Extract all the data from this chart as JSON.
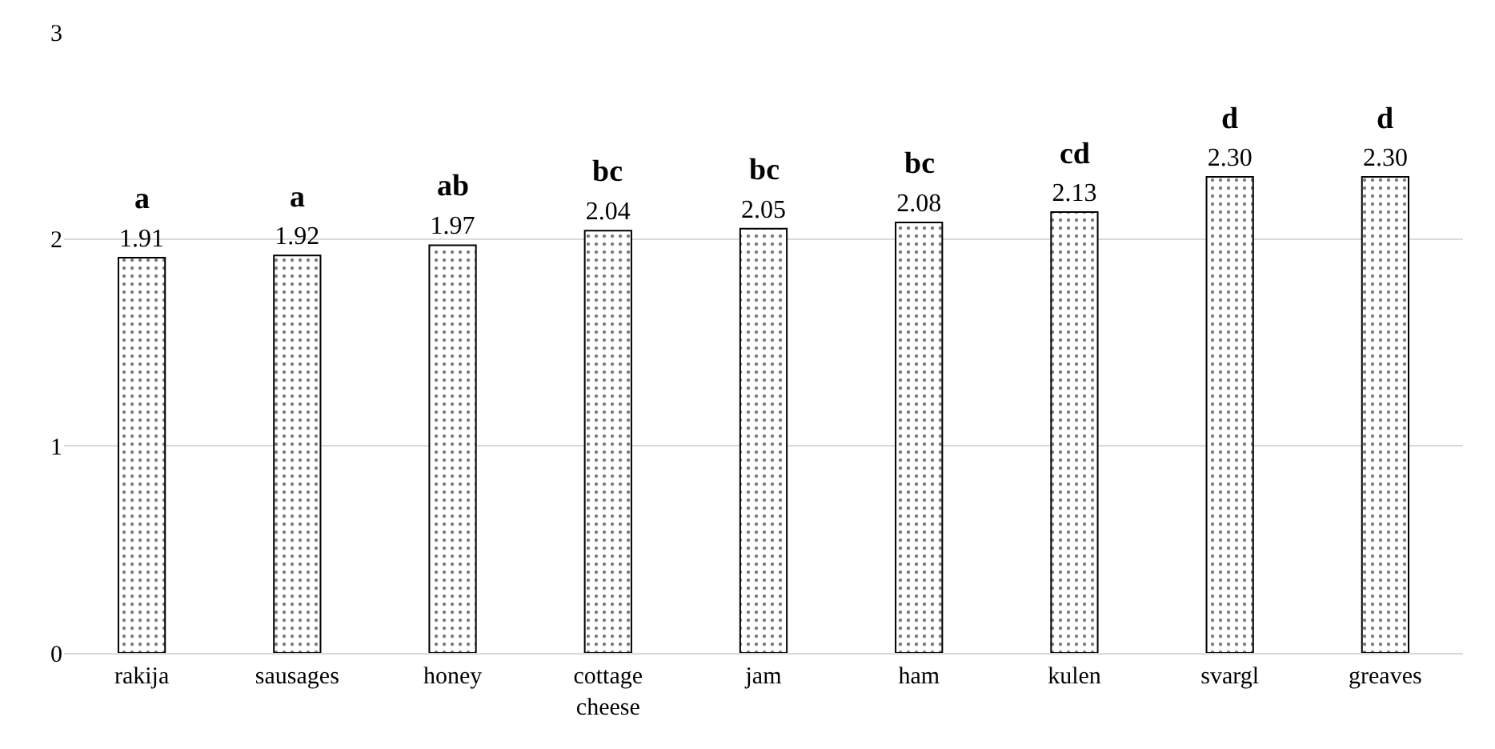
{
  "chart_data": {
    "type": "bar",
    "categories": [
      "rakija",
      "sausages",
      "honey",
      "cottage cheese",
      "jam",
      "ham",
      "kulen",
      "svargl",
      "greaves"
    ],
    "values": [
      1.91,
      1.92,
      1.97,
      2.04,
      2.05,
      2.08,
      2.13,
      2.3,
      2.3
    ],
    "color": "#000000",
    "value_labels": [
      "1.91",
      "1.92",
      "1.97",
      "2.04",
      "2.05",
      "2.08",
      "2.13",
      "2.30",
      "2.30"
    ],
    "ylim": [
      0,
      3
    ],
    "yticks": [
      0,
      1,
      2,
      3
    ],
    "grid": "y",
    "annotations": [
      {
        "text": "a",
        "x": "rakija",
        "y": 1.91
      },
      {
        "text": "a",
        "x": "sausages",
        "y": 1.92
      },
      {
        "text": "ab",
        "x": "honey",
        "y": 1.97
      },
      {
        "text": "bc",
        "x": "cottage cheese",
        "y": 2.04
      },
      {
        "text": "bc",
        "x": "jam",
        "y": 2.05
      },
      {
        "text": "bc",
        "x": "ham",
        "y": 2.08
      },
      {
        "text": "cd",
        "x": "kulen",
        "y": 2.13
      },
      {
        "text": "d",
        "x": "svargl",
        "y": 2.3
      },
      {
        "text": "d",
        "x": "greaves",
        "y": 2.3
      }
    ]
  }
}
